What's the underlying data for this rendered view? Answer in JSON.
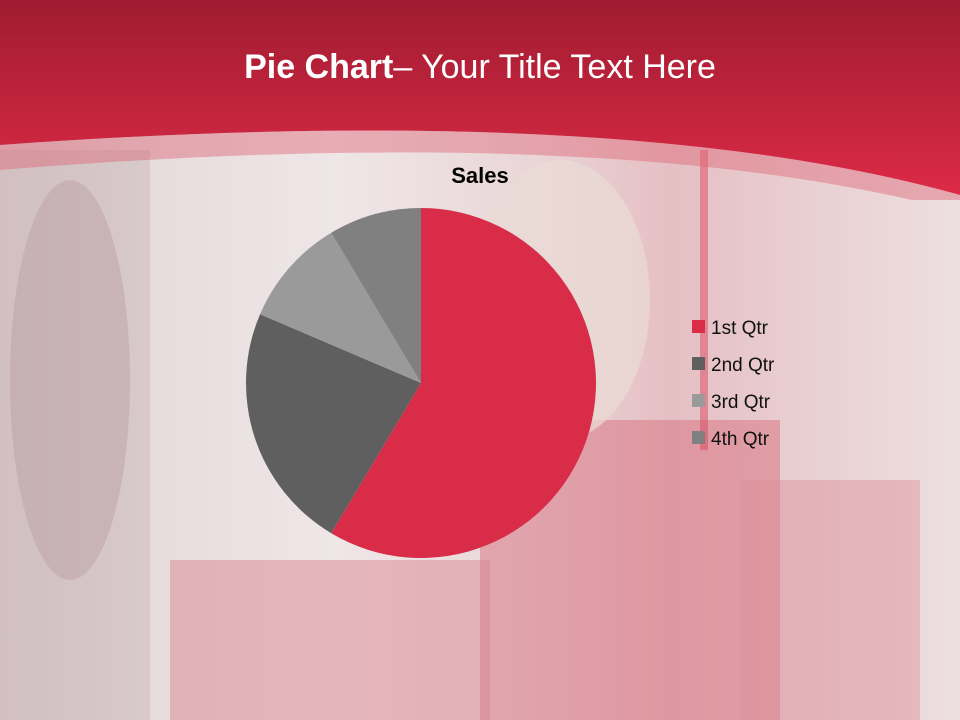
{
  "slide": {
    "title_bold": "Pie Chart",
    "title_rest": "– Your Title Text Here"
  },
  "colors": {
    "header": "#d62a45",
    "header_top": "#a01c30"
  },
  "chart_data": {
    "type": "pie",
    "title": "Sales",
    "categories": [
      "1st Qtr",
      "2nd Qtr",
      "3rd Qtr",
      "4th Qtr"
    ],
    "values": [
      8.2,
      3.2,
      1.4,
      1.2
    ],
    "colors": [
      "#d82c48",
      "#5f5f5f",
      "#9a9a9a",
      "#808080"
    ],
    "legend": "right"
  }
}
